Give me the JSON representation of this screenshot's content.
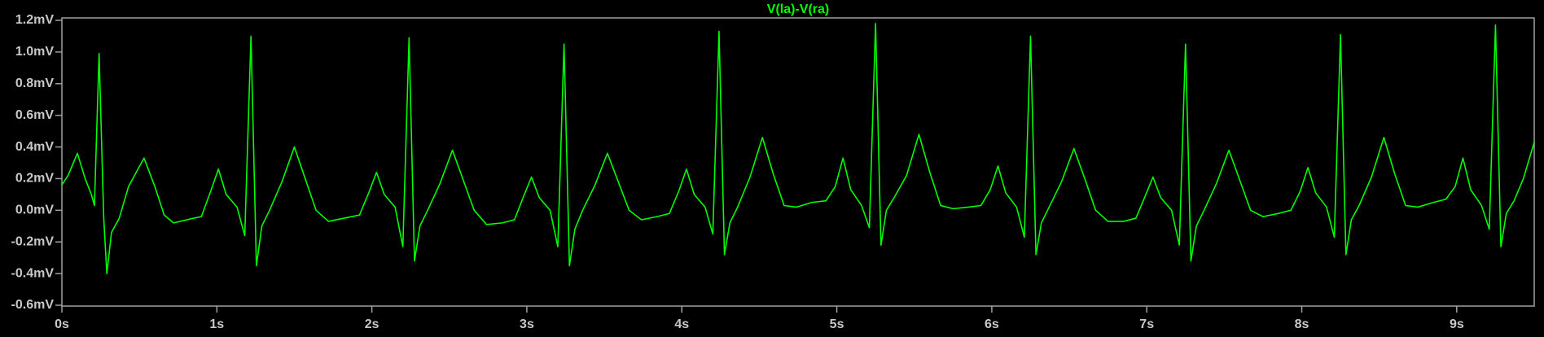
{
  "chart_data": {
    "type": "line",
    "x": [
      0,
      0.04,
      0.1,
      0.15,
      0.19,
      0.21,
      0.24,
      0.27,
      0.29,
      0.32,
      0.37,
      0.43,
      0.53,
      0.6,
      0.66,
      0.72,
      0.85,
      0.9,
      0.96,
      1.01,
      1.06,
      1.13,
      1.18,
      1.22,
      1.255,
      1.29,
      1.34,
      1.42,
      1.5,
      1.57,
      1.64,
      1.72,
      1.82,
      1.92,
      1.98,
      2.03,
      2.08,
      2.15,
      2.2,
      2.24,
      2.275,
      2.31,
      2.36,
      2.44,
      2.52,
      2.59,
      2.66,
      2.74,
      2.84,
      2.92,
      2.98,
      3.03,
      3.08,
      3.15,
      3.2,
      3.24,
      3.275,
      3.31,
      3.36,
      3.44,
      3.52,
      3.59,
      3.66,
      3.74,
      3.84,
      3.92,
      3.98,
      4.03,
      4.08,
      4.15,
      4.2,
      4.24,
      4.275,
      4.31,
      4.36,
      4.44,
      4.52,
      4.59,
      4.66,
      4.74,
      4.84,
      4.93,
      4.99,
      5.04,
      5.09,
      5.16,
      5.21,
      5.25,
      5.285,
      5.32,
      5.37,
      5.45,
      5.53,
      5.6,
      5.67,
      5.75,
      5.85,
      5.93,
      5.99,
      6.04,
      6.09,
      6.16,
      6.21,
      6.25,
      6.285,
      6.32,
      6.37,
      6.45,
      6.53,
      6.6,
      6.67,
      6.75,
      6.85,
      6.93,
      6.99,
      7.04,
      7.09,
      7.16,
      7.21,
      7.25,
      7.285,
      7.32,
      7.37,
      7.45,
      7.53,
      7.6,
      7.67,
      7.75,
      7.85,
      7.93,
      7.99,
      8.04,
      8.09,
      8.16,
      8.21,
      8.25,
      8.285,
      8.32,
      8.37,
      8.45,
      8.53,
      8.6,
      8.67,
      8.75,
      8.85,
      8.93,
      8.99,
      9.04,
      9.09,
      9.16,
      9.21,
      9.25,
      9.285,
      9.32,
      9.37,
      9.43,
      9.5
    ],
    "series": [
      {
        "name": "V(la)-V(ra)",
        "color": "#00ff00",
        "values": [
          0.16,
          0.22,
          0.36,
          0.2,
          0.1,
          0.03,
          0.99,
          -0.05,
          -0.4,
          -0.14,
          -0.05,
          0.15,
          0.33,
          0.15,
          -0.03,
          -0.08,
          -0.05,
          -0.04,
          0.12,
          0.26,
          0.1,
          0.02,
          -0.16,
          1.1,
          -0.35,
          -0.1,
          0,
          0.18,
          0.4,
          0.2,
          0,
          -0.07,
          -0.05,
          -0.03,
          0.11,
          0.24,
          0.1,
          0.02,
          -0.23,
          1.09,
          -0.32,
          -0.1,
          0,
          0.17,
          0.38,
          0.19,
          0,
          -0.09,
          -0.08,
          -0.06,
          0.09,
          0.21,
          0.08,
          0,
          -0.23,
          1.05,
          -0.35,
          -0.12,
          0,
          0.16,
          0.36,
          0.18,
          0,
          -0.06,
          -0.04,
          -0.02,
          0.12,
          0.26,
          0.1,
          0.02,
          -0.15,
          1.13,
          -0.28,
          -0.08,
          0.02,
          0.21,
          0.46,
          0.23,
          0.03,
          0.02,
          0.05,
          0.06,
          0.15,
          0.33,
          0.13,
          0.03,
          -0.11,
          1.18,
          -0.22,
          0,
          0.08,
          0.22,
          0.48,
          0.24,
          0.03,
          0.01,
          0.02,
          0.03,
          0.13,
          0.28,
          0.11,
          0.02,
          -0.17,
          1.1,
          -0.28,
          -0.08,
          0.02,
          0.18,
          0.39,
          0.2,
          0,
          -0.07,
          -0.07,
          -0.05,
          0.09,
          0.21,
          0.08,
          0,
          -0.22,
          1.05,
          -0.32,
          -0.1,
          0,
          0.17,
          0.38,
          0.19,
          0,
          -0.04,
          -0.02,
          0,
          0.12,
          0.27,
          0.11,
          0.02,
          -0.17,
          1.11,
          -0.28,
          -0.06,
          0.03,
          0.21,
          0.46,
          0.23,
          0.03,
          0.02,
          0.05,
          0.07,
          0.15,
          0.33,
          0.13,
          0.03,
          -0.12,
          1.17,
          -0.23,
          -0.02,
          0.06,
          0.2,
          0.43
        ]
      }
    ],
    "xlim": [
      0,
      9.5
    ],
    "xticks": [
      {
        "value": 0,
        "label": "0s"
      },
      {
        "value": 1,
        "label": "1s"
      },
      {
        "value": 2,
        "label": "2s"
      },
      {
        "value": 3,
        "label": "3s"
      },
      {
        "value": 4,
        "label": "4s"
      },
      {
        "value": 5,
        "label": "5s"
      },
      {
        "value": 6,
        "label": "6s"
      },
      {
        "value": 7,
        "label": "7s"
      },
      {
        "value": 8,
        "label": "8s"
      },
      {
        "value": 9,
        "label": "9s"
      }
    ],
    "ylim": [
      -0.6,
      1.2
    ],
    "yticks": [
      {
        "value": -0.6,
        "label": "-0.6mV"
      },
      {
        "value": -0.4,
        "label": "-0.4mV"
      },
      {
        "value": -0.2,
        "label": "-0.2mV"
      },
      {
        "value": 0,
        "label": "0.0mV"
      },
      {
        "value": 0.2,
        "label": "0.2mV"
      },
      {
        "value": 0.4,
        "label": "0.4mV"
      },
      {
        "value": 0.6,
        "label": "0.6mV"
      },
      {
        "value": 0.8,
        "label": "0.8mV"
      },
      {
        "value": 1.0,
        "label": "1.0mV"
      },
      {
        "value": 1.2,
        "label": "1.2mV"
      }
    ],
    "grid": false
  }
}
